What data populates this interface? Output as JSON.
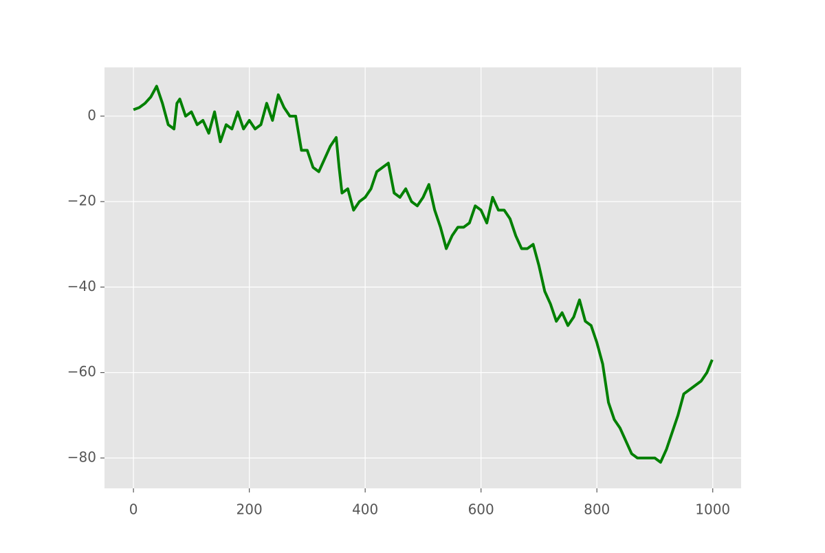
{
  "chart_data": {
    "type": "line",
    "x": [
      0,
      10,
      20,
      30,
      40,
      50,
      60,
      70,
      75,
      80,
      90,
      100,
      110,
      120,
      130,
      140,
      150,
      160,
      170,
      180,
      190,
      200,
      210,
      220,
      230,
      240,
      250,
      260,
      270,
      280,
      290,
      300,
      310,
      320,
      330,
      340,
      350,
      355,
      360,
      370,
      380,
      390,
      400,
      410,
      420,
      430,
      440,
      450,
      460,
      470,
      480,
      490,
      500,
      510,
      520,
      530,
      540,
      550,
      560,
      570,
      580,
      590,
      600,
      610,
      620,
      630,
      640,
      650,
      660,
      670,
      680,
      690,
      700,
      710,
      720,
      730,
      740,
      750,
      760,
      770,
      780,
      790,
      800,
      810,
      820,
      830,
      840,
      850,
      860,
      870,
      880,
      890,
      900,
      910,
      920,
      930,
      940,
      950,
      960,
      970,
      980,
      990,
      999
    ],
    "series": [
      {
        "color": "#008000",
        "values": [
          1.5,
          2,
          3,
          4.5,
          7,
          3,
          -2,
          -3,
          3,
          4,
          0,
          1,
          -2,
          -1,
          -4,
          1,
          -6,
          -2,
          -3,
          1,
          -3,
          -1,
          -3,
          -2,
          3,
          -1,
          5,
          2,
          0,
          0,
          -8,
          -8,
          -12,
          -13,
          -10,
          -7,
          -5,
          -12,
          -18,
          -17,
          -22,
          -20,
          -19,
          -17,
          -13,
          -12,
          -11,
          -18,
          -19,
          -17,
          -20,
          -21,
          -19,
          -16,
          -22,
          -26,
          -31,
          -28,
          -26,
          -26,
          -25,
          -21,
          -22,
          -25,
          -19,
          -22,
          -22,
          -24,
          -28,
          -31,
          -31,
          -30,
          -35,
          -41,
          -44,
          -48,
          -46,
          -49,
          -47,
          -43,
          -48,
          -49,
          -53,
          -58,
          -67,
          -71,
          -73,
          -76,
          -79,
          -80,
          -80,
          -80,
          -80,
          -81,
          -78,
          -74,
          -70,
          -65,
          -64,
          -63,
          -62,
          -60,
          -57
        ]
      }
    ],
    "xlim": [
      -50,
      1049
    ],
    "ylim": [
      -87.1,
      11.4
    ],
    "xticks": [
      0,
      200,
      400,
      600,
      800,
      1000
    ],
    "yticks": [
      0,
      {
        "value": -20,
        "label": "−20"
      },
      {
        "value": -40,
        "label": "−40"
      },
      {
        "value": -60,
        "label": "−60"
      },
      {
        "value": -80,
        "label": "−80"
      }
    ],
    "grid": true
  }
}
